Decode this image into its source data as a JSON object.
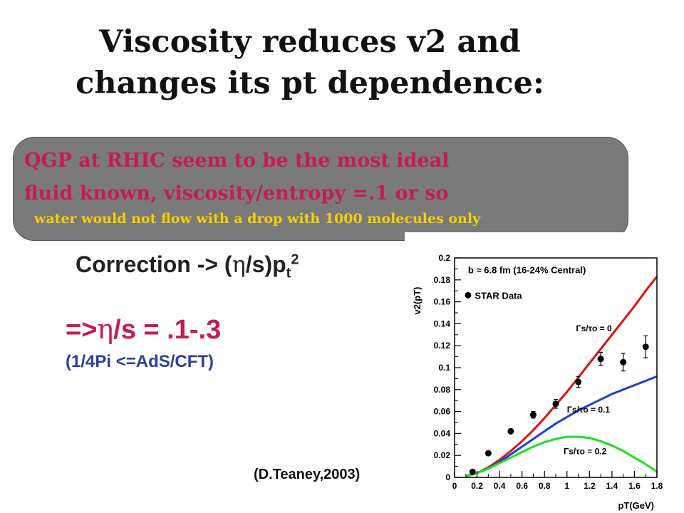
{
  "slide": {
    "title_line1": "Viscosity reduces v2 and",
    "title_line2": "changes its pt dependence:",
    "box_line1": "QGP at RHIC seem to be the most ideal",
    "box_line2": "fluid known, viscosity/entropy =.1 or so",
    "box_small": "water would not flow with a drop with 1000 molecules only",
    "correction_prefix": "Correction -> (",
    "eta": "η",
    "correction_mid": "/s)p",
    "correction_sub": "t",
    "correction_sup": "2",
    "result_prefix": "=>",
    "result_suffix": "/s = .1-.3",
    "ads_cft": "(1/4Pi <=AdS/CFT)",
    "citation": "(D.Teaney,2003)"
  },
  "colors": {
    "accent_pink": "#c41c55",
    "box_gray": "#7a7a7a",
    "note_yellow": "#f5d000",
    "blue_text": "#2b3fa0"
  },
  "chart_data": {
    "type": "line",
    "ylabel": "v2(pT)",
    "xlabel": "pT(GeV)",
    "xlim": [
      0,
      1.8
    ],
    "ylim": [
      0,
      0.2
    ],
    "xticks": [
      "0",
      "0.2",
      "0.4",
      "0.6",
      "0.8",
      "1",
      "1.2",
      "1.4",
      "1.6",
      "1.8"
    ],
    "yticks": [
      "0",
      "0.02",
      "0.04",
      "0.06",
      "0.08",
      "0.1",
      "0.12",
      "0.14",
      "0.16",
      "0.18",
      "0.2"
    ],
    "annotation": "b ≈ 6.8 fm (16-24% Central)",
    "legend_label": "STAR Data",
    "series": [
      {
        "label": "Γs/τo = 0",
        "color": "#e01010",
        "x": [
          0.1,
          0.2,
          0.3,
          0.4,
          0.5,
          0.6,
          0.7,
          0.8,
          0.9,
          1.0,
          1.1,
          1.2,
          1.3,
          1.4,
          1.5,
          1.6,
          1.7,
          1.8
        ],
        "y": [
          0.001,
          0.004,
          0.009,
          0.016,
          0.024,
          0.033,
          0.043,
          0.054,
          0.066,
          0.078,
          0.091,
          0.104,
          0.117,
          0.13,
          0.143,
          0.156,
          0.17,
          0.183
        ]
      },
      {
        "label": "Γs/τo = 0.1",
        "color": "#1a3fdb",
        "x": [
          0.1,
          0.2,
          0.3,
          0.4,
          0.5,
          0.6,
          0.7,
          0.8,
          0.9,
          1.0,
          1.1,
          1.2,
          1.3,
          1.4,
          1.5,
          1.6,
          1.7,
          1.8
        ],
        "y": [
          0.001,
          0.004,
          0.008,
          0.014,
          0.021,
          0.028,
          0.035,
          0.042,
          0.049,
          0.055,
          0.061,
          0.066,
          0.071,
          0.076,
          0.08,
          0.084,
          0.088,
          0.092
        ]
      },
      {
        "label": "Γs/τo = 0.2",
        "color": "#1ee01e",
        "x": [
          0.1,
          0.2,
          0.3,
          0.4,
          0.5,
          0.6,
          0.7,
          0.8,
          0.9,
          1.0,
          1.1,
          1.2,
          1.3,
          1.4,
          1.5,
          1.6,
          1.7,
          1.8
        ],
        "y": [
          0.001,
          0.004,
          0.008,
          0.013,
          0.018,
          0.023,
          0.028,
          0.032,
          0.035,
          0.037,
          0.037,
          0.036,
          0.033,
          0.029,
          0.024,
          0.018,
          0.012,
          0.005
        ]
      }
    ],
    "points": {
      "x": [
        0.16,
        0.3,
        0.5,
        0.7,
        0.9,
        1.1,
        1.3,
        1.5,
        1.7
      ],
      "y": [
        0.005,
        0.022,
        0.042,
        0.057,
        0.067,
        0.087,
        0.108,
        0.105,
        0.119
      ],
      "err": [
        0.001,
        0.002,
        0.002,
        0.003,
        0.004,
        0.005,
        0.006,
        0.008,
        0.01
      ]
    }
  }
}
